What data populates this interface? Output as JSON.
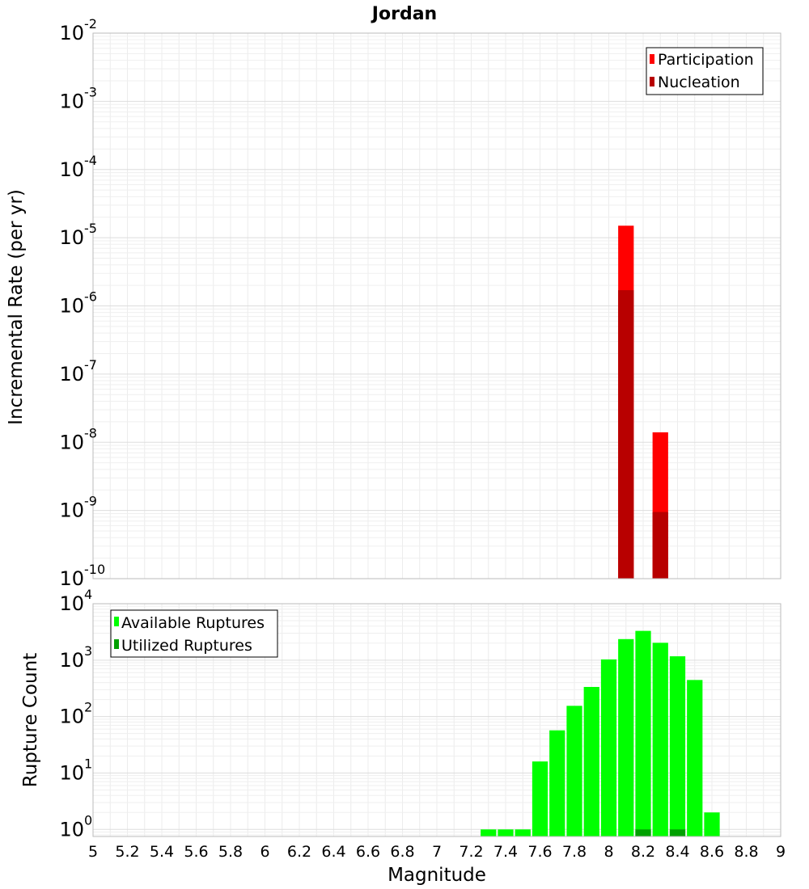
{
  "title": "Jordan",
  "chart_data": [
    {
      "type": "bar",
      "ylabel": "Incremental Rate (per yr)",
      "log_scale": true,
      "ylim": [
        1e-10,
        0.01
      ],
      "yticks": [
        {
          "base": "10",
          "exp": "-2"
        },
        {
          "base": "10",
          "exp": "-3"
        },
        {
          "base": "10",
          "exp": "-4"
        },
        {
          "base": "10",
          "exp": "-5"
        },
        {
          "base": "10",
          "exp": "-6"
        },
        {
          "base": "10",
          "exp": "-7"
        },
        {
          "base": "10",
          "exp": "-8"
        },
        {
          "base": "10",
          "exp": "-9"
        },
        {
          "base": "10",
          "exp": "-10"
        }
      ],
      "x": [
        8.1,
        8.3
      ],
      "series": [
        {
          "name": "Participation",
          "color": "#ff0000",
          "values": [
            1.5e-05,
            1.4e-08
          ]
        },
        {
          "name": "Nucleation",
          "color": "#b80000",
          "values": [
            1.7e-06,
            9.5e-10
          ]
        }
      ],
      "legend_position": "top-right",
      "grid": true
    },
    {
      "type": "bar",
      "ylabel": "Rupture Count",
      "xlabel": "Magnitude",
      "log_scale": true,
      "ylim": [
        0.75,
        10000
      ],
      "yticks": [
        {
          "base": "10",
          "exp": "4"
        },
        {
          "base": "10",
          "exp": "3"
        },
        {
          "base": "10",
          "exp": "2"
        },
        {
          "base": "10",
          "exp": "1"
        },
        {
          "base": "10",
          "exp": "0"
        }
      ],
      "xlim": [
        5,
        9
      ],
      "xticks": [
        "5",
        "5.2",
        "5.4",
        "5.6",
        "5.8",
        "6",
        "6.2",
        "6.4",
        "6.6",
        "6.8",
        "7",
        "7.2",
        "7.4",
        "7.6",
        "7.8",
        "8",
        "8.2",
        "8.4",
        "8.6",
        "8.8",
        "9"
      ],
      "x": [
        7.3,
        7.4,
        7.5,
        7.6,
        7.7,
        7.8,
        7.9,
        8.0,
        8.1,
        8.2,
        8.3,
        8.4,
        8.5,
        8.6
      ],
      "series": [
        {
          "name": "Available Ruptures",
          "color": "#00ff00",
          "values": [
            1,
            1,
            1,
            16,
            57,
            155,
            335,
            1030,
            2360,
            3300,
            2030,
            1170,
            445,
            2
          ]
        },
        {
          "name": "Utilized Ruptures",
          "color": "#00a000",
          "values": [
            0,
            0,
            0,
            0,
            0,
            0,
            0,
            0,
            0,
            1,
            0,
            1,
            0,
            0
          ]
        }
      ],
      "legend_position": "top-left",
      "grid": true
    }
  ]
}
